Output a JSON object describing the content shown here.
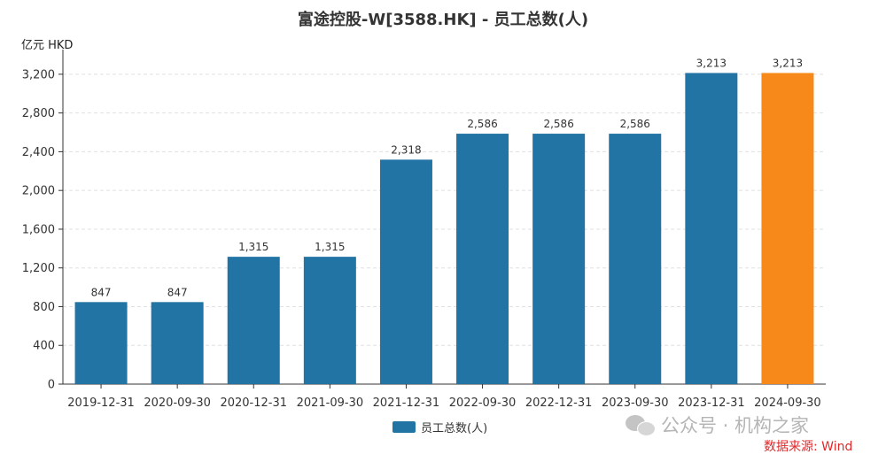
{
  "chart_data": {
    "type": "bar",
    "title": "富途控股-W[3588.HK] - 员工总数(人)",
    "unit_label": "亿元  HKD",
    "categories": [
      "2019-12-31",
      "2020-09-30",
      "2020-12-31",
      "2021-09-30",
      "2021-12-31",
      "2022-09-30",
      "2022-12-31",
      "2023-09-30",
      "2023-12-31",
      "2024-09-30"
    ],
    "series": [
      {
        "name": "员工总数(人)",
        "values": [
          847,
          847,
          1315,
          1315,
          2318,
          2586,
          2586,
          2586,
          3213,
          3213
        ]
      }
    ],
    "data_labels": [
      "847",
      "847",
      "1,315",
      "1,315",
      "2,318",
      "2,586",
      "2,586",
      "2,586",
      "3,213",
      "3,213"
    ],
    "y_ticks": [
      0,
      400,
      800,
      1200,
      1600,
      2000,
      2400,
      2800,
      3200
    ],
    "y_tick_labels": [
      "0",
      "400",
      "800",
      "1,200",
      "1,600",
      "2,000",
      "2,400",
      "2,800",
      "3,200"
    ],
    "ylim": [
      0,
      3400
    ],
    "grid": true,
    "legend_position": "bottom-center",
    "colors": {
      "bar": "#2274a5",
      "highlight": "#f7891b",
      "grid": "#e0e0e0",
      "axis": "#333333"
    },
    "highlight_index": 9
  },
  "watermark": {
    "text": "公众号 · 机构之家",
    "icon": "wechat-icon"
  },
  "source_note": "数据来源: Wind"
}
